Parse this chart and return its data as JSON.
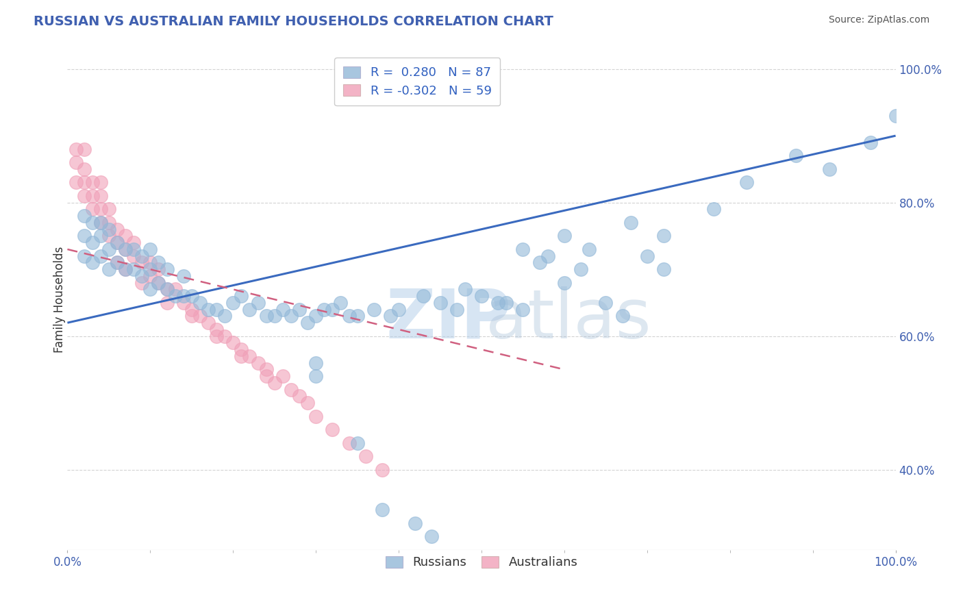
{
  "title": "RUSSIAN VS AUSTRALIAN FAMILY HOUSEHOLDS CORRELATION CHART",
  "source": "Source: ZipAtlas.com",
  "ylabel": "Family Households",
  "watermark_zip": "ZIP",
  "watermark_atlas": "atlas",
  "legend_russian_R": 0.28,
  "legend_russian_N": 87,
  "legend_australian_R": -0.302,
  "legend_australian_N": 59,
  "russian_color": "#92b8d8",
  "australian_color": "#f0a0b8",
  "trend_russian_color": "#3a6abf",
  "trend_australian_color": "#d06080",
  "background_color": "#ffffff",
  "grid_color": "#c8c8c8",
  "title_color": "#4060b0",
  "tick_color": "#4060b0",
  "source_color": "#555555",
  "ylabel_color": "#333333",
  "xlim": [
    0.0,
    1.0
  ],
  "ylim": [
    0.28,
    1.03
  ],
  "yticks": [
    0.4,
    0.6,
    0.8,
    1.0
  ],
  "ytick_labels": [
    "40.0%",
    "60.0%",
    "80.0%",
    "100.0%"
  ],
  "rus_x": [
    0.02,
    0.02,
    0.02,
    0.03,
    0.03,
    0.03,
    0.04,
    0.04,
    0.04,
    0.05,
    0.05,
    0.05,
    0.06,
    0.06,
    0.07,
    0.07,
    0.08,
    0.08,
    0.09,
    0.09,
    0.1,
    0.1,
    0.1,
    0.11,
    0.11,
    0.12,
    0.12,
    0.13,
    0.14,
    0.14,
    0.15,
    0.16,
    0.17,
    0.18,
    0.19,
    0.2,
    0.21,
    0.22,
    0.23,
    0.24,
    0.25,
    0.26,
    0.27,
    0.28,
    0.29,
    0.3,
    0.31,
    0.32,
    0.33,
    0.34,
    0.35,
    0.37,
    0.39,
    0.4,
    0.43,
    0.45,
    0.47,
    0.5,
    0.53,
    0.55,
    0.58,
    0.6,
    0.62,
    0.65,
    0.67,
    0.7,
    0.72,
    0.3,
    0.3,
    0.35,
    0.38,
    0.42,
    0.44,
    0.48,
    0.52,
    0.55,
    0.57,
    0.6,
    0.63,
    0.68,
    0.72,
    0.78,
    0.82,
    0.88,
    0.92,
    0.97,
    1.0
  ],
  "rus_y": [
    0.72,
    0.75,
    0.78,
    0.71,
    0.74,
    0.77,
    0.72,
    0.75,
    0.77,
    0.7,
    0.73,
    0.76,
    0.71,
    0.74,
    0.7,
    0.73,
    0.7,
    0.73,
    0.69,
    0.72,
    0.67,
    0.7,
    0.73,
    0.68,
    0.71,
    0.67,
    0.7,
    0.66,
    0.66,
    0.69,
    0.66,
    0.65,
    0.64,
    0.64,
    0.63,
    0.65,
    0.66,
    0.64,
    0.65,
    0.63,
    0.63,
    0.64,
    0.63,
    0.64,
    0.62,
    0.63,
    0.64,
    0.64,
    0.65,
    0.63,
    0.63,
    0.64,
    0.63,
    0.64,
    0.66,
    0.65,
    0.64,
    0.66,
    0.65,
    0.64,
    0.72,
    0.68,
    0.7,
    0.65,
    0.63,
    0.72,
    0.7,
    0.56,
    0.54,
    0.44,
    0.34,
    0.32,
    0.3,
    0.67,
    0.65,
    0.73,
    0.71,
    0.75,
    0.73,
    0.77,
    0.75,
    0.79,
    0.83,
    0.87,
    0.85,
    0.89,
    0.93
  ],
  "aus_x": [
    0.01,
    0.01,
    0.01,
    0.02,
    0.02,
    0.02,
    0.02,
    0.03,
    0.03,
    0.03,
    0.04,
    0.04,
    0.04,
    0.04,
    0.05,
    0.05,
    0.05,
    0.06,
    0.06,
    0.07,
    0.07,
    0.08,
    0.08,
    0.09,
    0.1,
    0.1,
    0.11,
    0.11,
    0.12,
    0.13,
    0.14,
    0.15,
    0.16,
    0.17,
    0.18,
    0.19,
    0.2,
    0.21,
    0.22,
    0.23,
    0.24,
    0.25,
    0.26,
    0.27,
    0.28,
    0.29,
    0.3,
    0.32,
    0.34,
    0.36,
    0.38,
    0.06,
    0.07,
    0.09,
    0.12,
    0.15,
    0.18,
    0.21,
    0.24
  ],
  "aus_y": [
    0.83,
    0.86,
    0.88,
    0.81,
    0.83,
    0.85,
    0.88,
    0.79,
    0.81,
    0.83,
    0.77,
    0.79,
    0.81,
    0.83,
    0.75,
    0.77,
    0.79,
    0.74,
    0.76,
    0.73,
    0.75,
    0.72,
    0.74,
    0.71,
    0.69,
    0.71,
    0.68,
    0.7,
    0.67,
    0.67,
    0.65,
    0.64,
    0.63,
    0.62,
    0.61,
    0.6,
    0.59,
    0.58,
    0.57,
    0.56,
    0.55,
    0.53,
    0.54,
    0.52,
    0.51,
    0.5,
    0.48,
    0.46,
    0.44,
    0.42,
    0.4,
    0.71,
    0.7,
    0.68,
    0.65,
    0.63,
    0.6,
    0.57,
    0.54
  ],
  "trend_rus_x0": 0.0,
  "trend_rus_x1": 1.0,
  "trend_rus_y0": 0.62,
  "trend_rus_y1": 0.9,
  "trend_aus_x0": 0.0,
  "trend_aus_x1": 0.6,
  "trend_aus_y0": 0.73,
  "trend_aus_y1": 0.55
}
